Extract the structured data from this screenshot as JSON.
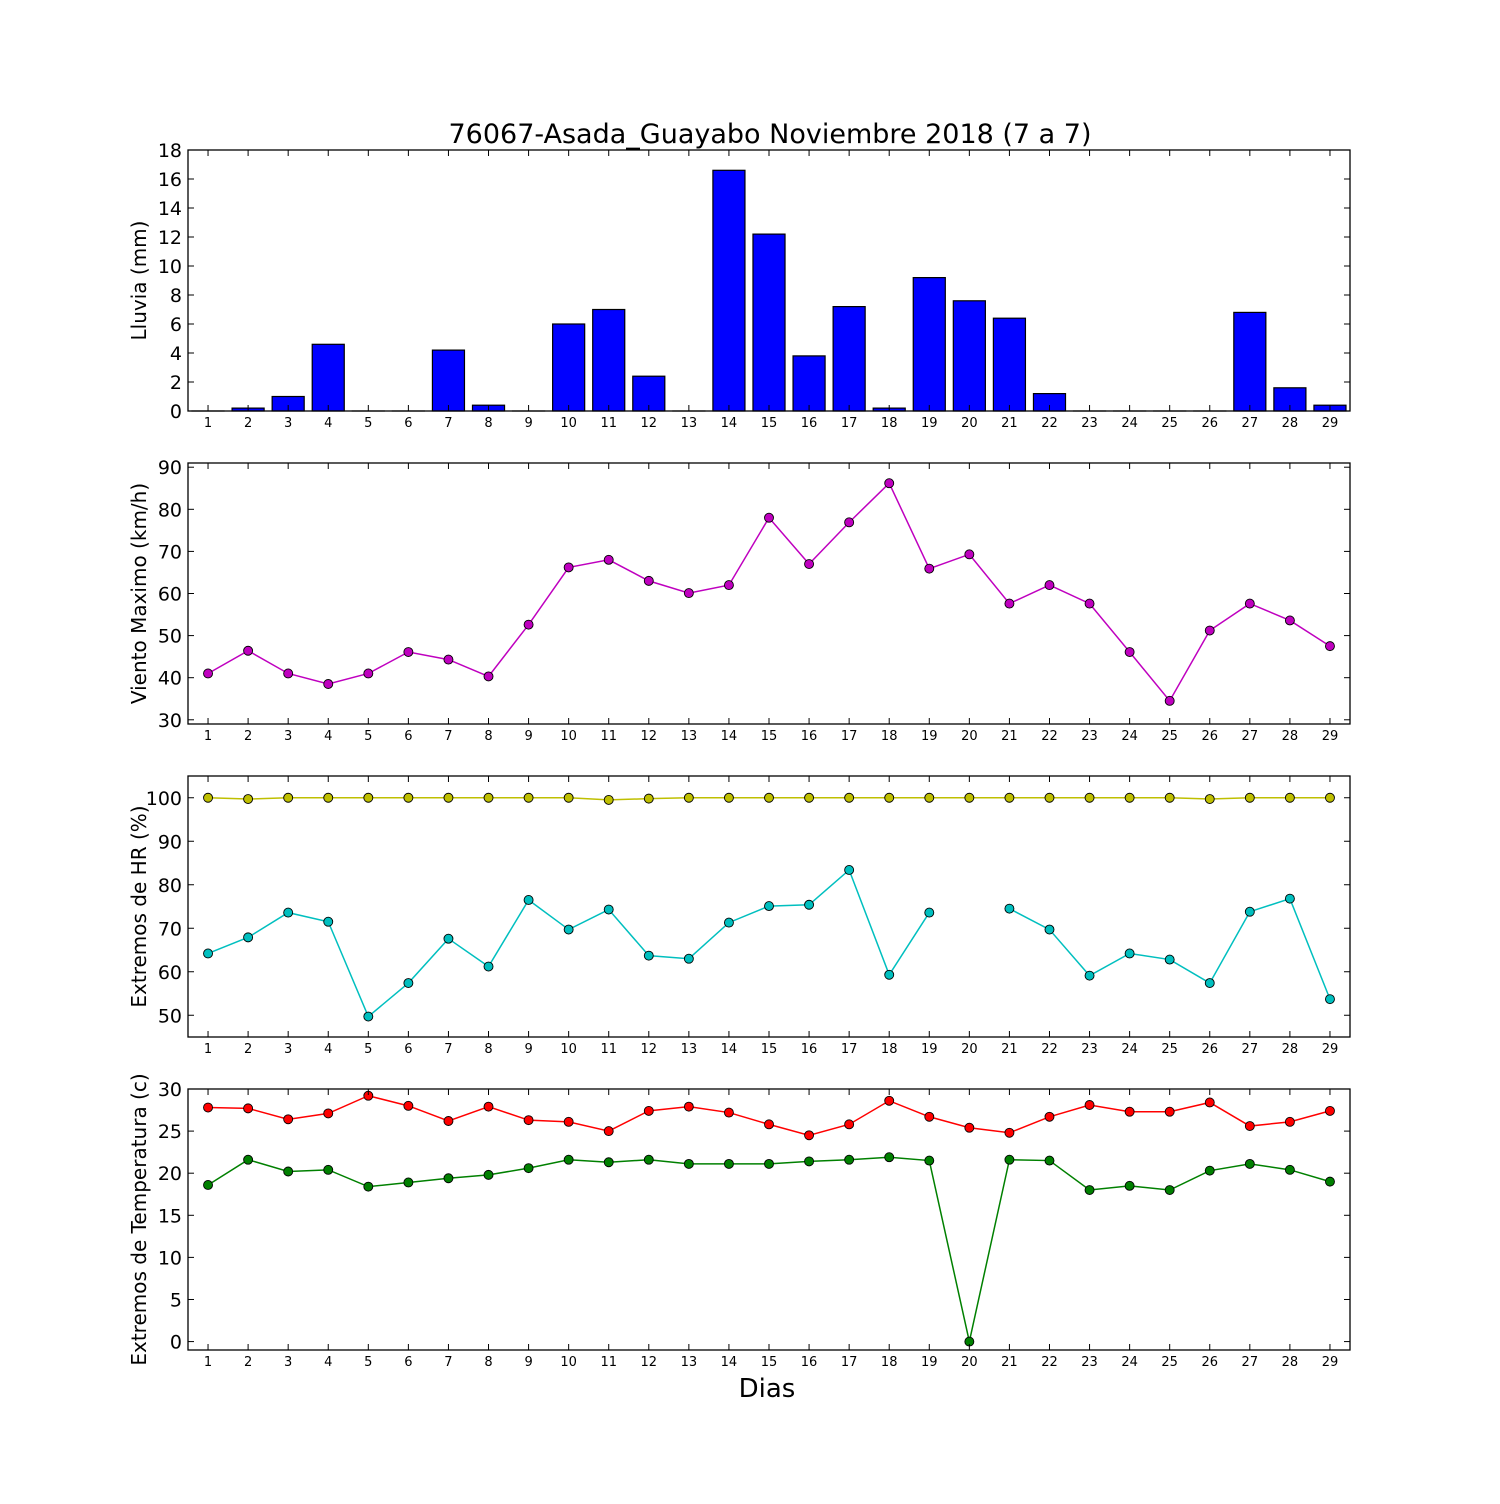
{
  "chart_data": [
    {
      "type": "bar",
      "title": "76067-Asada_Guayabo Noviembre 2018  (7 a 7)",
      "ylabel": "Lluvia (mm)",
      "xlabel": "",
      "x": [
        1,
        2,
        3,
        4,
        5,
        6,
        7,
        8,
        9,
        10,
        11,
        12,
        13,
        14,
        15,
        16,
        17,
        18,
        19,
        20,
        21,
        22,
        23,
        24,
        25,
        26,
        27,
        28,
        29
      ],
      "ylim": [
        0,
        18
      ],
      "yticks": [
        0,
        2,
        4,
        6,
        8,
        10,
        12,
        14,
        16,
        18
      ],
      "series": [
        {
          "color": "#0000ff",
          "values": [
            0,
            0.2,
            1.0,
            4.6,
            0,
            0,
            4.2,
            0.4,
            0,
            6.0,
            7.0,
            2.4,
            0,
            16.6,
            12.2,
            3.8,
            7.2,
            0.2,
            9.2,
            7.6,
            6.4,
            1.2,
            0,
            0,
            0,
            0,
            6.8,
            1.6,
            0.4
          ]
        }
      ]
    },
    {
      "type": "line",
      "ylabel": "Viento Maximo (km/h)",
      "xlabel": "",
      "x": [
        1,
        2,
        3,
        4,
        5,
        6,
        7,
        8,
        9,
        10,
        11,
        12,
        13,
        14,
        15,
        16,
        17,
        18,
        19,
        20,
        21,
        22,
        23,
        24,
        25,
        26,
        27,
        28,
        29
      ],
      "ylim": [
        29,
        91
      ],
      "yticks": [
        30,
        40,
        50,
        60,
        70,
        80,
        90
      ],
      "series": [
        {
          "color": "#bf00bf",
          "values": [
            41.0,
            46.4,
            41.0,
            38.5,
            41.0,
            46.1,
            44.3,
            40.3,
            52.6,
            66.2,
            68.0,
            63.0,
            60.1,
            62.0,
            78.0,
            67.0,
            76.9,
            86.2,
            65.9,
            69.3,
            57.6,
            62.0,
            57.6,
            46.1,
            34.5,
            51.2,
            57.6,
            53.6,
            47.5
          ]
        }
      ]
    },
    {
      "type": "line",
      "ylabel": "Extremos de HR (%)",
      "xlabel": "",
      "x": [
        1,
        2,
        3,
        4,
        5,
        6,
        7,
        8,
        9,
        10,
        11,
        12,
        13,
        14,
        15,
        16,
        17,
        18,
        19,
        20,
        21,
        22,
        23,
        24,
        25,
        26,
        27,
        28,
        29
      ],
      "ylim": [
        45,
        105
      ],
      "yticks": [
        50,
        60,
        70,
        80,
        90,
        100
      ],
      "series": [
        {
          "color": "#bfbf00",
          "values": [
            100,
            99.7,
            100,
            100,
            100,
            100,
            100,
            100,
            100,
            100,
            99.5,
            99.8,
            100,
            100,
            100,
            100,
            100,
            100,
            100,
            100,
            100,
            100,
            100,
            100,
            100,
            99.7,
            100,
            100,
            100
          ]
        },
        {
          "color": "#00bfbf",
          "values": [
            64.2,
            67.9,
            73.6,
            71.5,
            49.7,
            57.4,
            67.6,
            61.2,
            76.5,
            69.7,
            74.3,
            63.7,
            63.0,
            71.3,
            75.1,
            75.4,
            83.4,
            59.3,
            73.6,
            null,
            74.5,
            69.7,
            59.1,
            64.2,
            62.8,
            57.4,
            73.8,
            76.8,
            53.7
          ]
        }
      ]
    },
    {
      "type": "line",
      "ylabel": "Extremos de Temperatura (c)",
      "xlabel": "Dias",
      "x": [
        1,
        2,
        3,
        4,
        5,
        6,
        7,
        8,
        9,
        10,
        11,
        12,
        13,
        14,
        15,
        16,
        17,
        18,
        19,
        20,
        21,
        22,
        23,
        24,
        25,
        26,
        27,
        28,
        29
      ],
      "ylim": [
        -1,
        30
      ],
      "yticks": [
        0,
        5,
        10,
        15,
        20,
        25,
        30
      ],
      "series": [
        {
          "color": "#ff0000",
          "values": [
            27.8,
            27.7,
            26.4,
            27.1,
            29.2,
            28.0,
            26.2,
            27.9,
            26.3,
            26.1,
            25.0,
            27.4,
            27.9,
            27.2,
            25.8,
            24.5,
            25.8,
            28.6,
            26.7,
            25.4,
            24.8,
            26.7,
            28.1,
            27.3,
            27.3,
            28.4,
            25.6,
            26.1,
            27.4
          ]
        },
        {
          "color": "#008000",
          "values": [
            18.6,
            21.6,
            20.2,
            20.4,
            18.4,
            18.9,
            19.4,
            19.8,
            20.6,
            21.6,
            21.3,
            21.6,
            21.1,
            21.1,
            21.1,
            21.4,
            21.6,
            21.9,
            21.5,
            0,
            21.6,
            21.5,
            18.0,
            18.5,
            18.0,
            20.3,
            21.1,
            20.4,
            19.0
          ]
        }
      ]
    }
  ]
}
